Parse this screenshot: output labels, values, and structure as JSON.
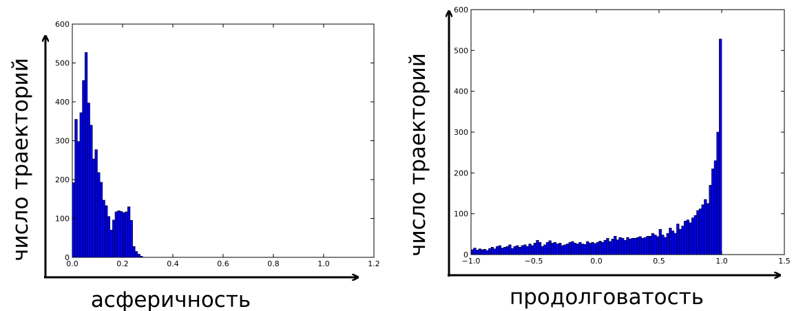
{
  "colors": {
    "bar_fill": "#0000ee",
    "bar_edge": "#000000",
    "axis": "#000000"
  },
  "chart_data": [
    {
      "type": "bar",
      "xlabel": "асферичность",
      "ylabel": "число траекторий",
      "xlim": [
        0.0,
        1.2
      ],
      "ylim": [
        0,
        600
      ],
      "xticks": [
        "0.0",
        "0.2",
        "0.4",
        "0.6",
        "0.8",
        "1.0",
        "1.2"
      ],
      "yticks": [
        "0",
        "100",
        "200",
        "300",
        "400",
        "500",
        "600"
      ],
      "bin_width": 0.01,
      "x": [
        0.0,
        0.01,
        0.02,
        0.03,
        0.04,
        0.05,
        0.06,
        0.07,
        0.08,
        0.09,
        0.1,
        0.11,
        0.12,
        0.13,
        0.14,
        0.15,
        0.16,
        0.17,
        0.18,
        0.19,
        0.2,
        0.21,
        0.22,
        0.23,
        0.24,
        0.25,
        0.26,
        0.27
      ],
      "values": [
        192,
        355,
        298,
        372,
        455,
        527,
        397,
        340,
        253,
        277,
        218,
        193,
        147,
        133,
        105,
        70,
        96,
        117,
        120,
        118,
        115,
        117,
        130,
        95,
        28,
        15,
        8,
        3
      ]
    },
    {
      "type": "bar",
      "xlabel": "продолговатость",
      "ylabel": "число траекторий",
      "xlim": [
        -1.0,
        1.5
      ],
      "ylim": [
        0,
        600
      ],
      "xticks": [
        "−1.0",
        "−0.5",
        "0.0",
        "0.5",
        "1.0",
        "1.5"
      ],
      "yticks": [
        "0",
        "100",
        "200",
        "300",
        "400",
        "500",
        "600"
      ],
      "bin_width": 0.02,
      "x": [
        -1.0,
        -0.98,
        -0.96,
        -0.94,
        -0.92,
        -0.9,
        -0.88,
        -0.86,
        -0.84,
        -0.82,
        -0.8,
        -0.78,
        -0.76,
        -0.74,
        -0.72,
        -0.7,
        -0.68,
        -0.66,
        -0.64,
        -0.62,
        -0.6,
        -0.58,
        -0.56,
        -0.54,
        -0.52,
        -0.5,
        -0.48,
        -0.46,
        -0.44,
        -0.42,
        -0.4,
        -0.38,
        -0.36,
        -0.34,
        -0.32,
        -0.3,
        -0.28,
        -0.26,
        -0.24,
        -0.22,
        -0.2,
        -0.18,
        -0.16,
        -0.14,
        -0.12,
        -0.1,
        -0.08,
        -0.06,
        -0.04,
        -0.02,
        0.0,
        0.02,
        0.04,
        0.06,
        0.08,
        0.1,
        0.12,
        0.14,
        0.16,
        0.18,
        0.2,
        0.22,
        0.24,
        0.26,
        0.28,
        0.3,
        0.32,
        0.34,
        0.36,
        0.38,
        0.4,
        0.42,
        0.44,
        0.46,
        0.48,
        0.5,
        0.52,
        0.54,
        0.56,
        0.58,
        0.6,
        0.62,
        0.64,
        0.66,
        0.68,
        0.7,
        0.72,
        0.74,
        0.76,
        0.78,
        0.8,
        0.82,
        0.84,
        0.86,
        0.88,
        0.9,
        0.92,
        0.94,
        0.96,
        0.98
      ],
      "values": [
        12,
        16,
        11,
        14,
        12,
        13,
        10,
        15,
        18,
        14,
        20,
        22,
        16,
        18,
        20,
        24,
        15,
        20,
        22,
        18,
        22,
        24,
        20,
        26,
        22,
        28,
        35,
        30,
        20,
        24,
        30,
        34,
        28,
        30,
        26,
        28,
        22,
        24,
        26,
        30,
        32,
        28,
        26,
        30,
        26,
        25,
        32,
        28,
        30,
        27,
        30,
        33,
        30,
        35,
        40,
        32,
        38,
        45,
        36,
        42,
        40,
        35,
        42,
        38,
        40,
        40,
        42,
        44,
        40,
        42,
        45,
        45,
        52,
        48,
        44,
        62,
        48,
        42,
        52,
        65,
        58,
        52,
        75,
        62,
        70,
        82,
        85,
        78,
        90,
        96,
        108,
        112,
        122,
        135,
        125,
        170,
        210,
        230,
        300,
        528
      ]
    }
  ]
}
